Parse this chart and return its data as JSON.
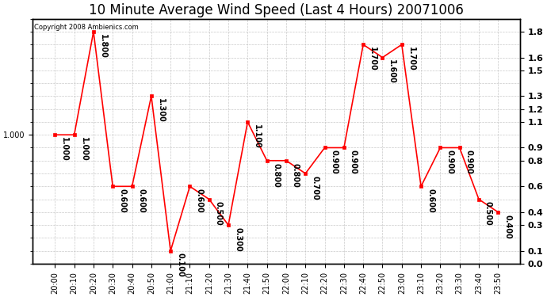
{
  "title": "10 Minute Average Wind Speed (Last 4 Hours) 20071006",
  "copyright": "Copyright 2008 Ambienics.com",
  "x_labels": [
    "20:00",
    "20:10",
    "20:20",
    "20:30",
    "20:40",
    "20:50",
    "21:00",
    "21:10",
    "21:20",
    "21:30",
    "21:40",
    "21:50",
    "22:00",
    "22:10",
    "22:20",
    "22:30",
    "22:40",
    "22:50",
    "23:00",
    "23:10",
    "23:20",
    "23:30",
    "23:40",
    "23:50"
  ],
  "y_values": [
    1.0,
    1.0,
    1.8,
    0.6,
    0.6,
    1.3,
    0.1,
    0.6,
    0.5,
    0.3,
    1.1,
    0.8,
    0.8,
    0.7,
    0.9,
    0.9,
    1.7,
    1.6,
    1.7,
    0.6,
    0.9,
    0.9,
    0.5,
    0.4
  ],
  "annot_values": [
    "1.000",
    "1.000",
    "1.800",
    "0.600",
    "0.600",
    "1.300",
    "0.100",
    "0.600",
    "0.500",
    "0.300",
    "1.100",
    "0.800",
    "0.800",
    "0.700",
    "0.900",
    "0.900",
    "1.700",
    "1.600",
    "1.700",
    "0.600",
    "0.900",
    "0.900",
    "0.500",
    "0.400"
  ],
  "line_color": "#ff0000",
  "marker_color": "#ff0000",
  "bg_color": "#ffffff",
  "grid_color": "#bbbbbb",
  "ylim": [
    0.0,
    1.9
  ],
  "yticks_left": [
    1.0
  ],
  "yticks_right": [
    0.0,
    0.1,
    0.3,
    0.4,
    0.6,
    0.8,
    0.9,
    1.1,
    1.2,
    1.3,
    1.5,
    1.6,
    1.8
  ],
  "grid_yticks": [
    0.0,
    0.1,
    0.2,
    0.3,
    0.4,
    0.5,
    0.6,
    0.7,
    0.8,
    0.9,
    1.0,
    1.1,
    1.2,
    1.3,
    1.4,
    1.5,
    1.6,
    1.7,
    1.8,
    1.9
  ],
  "title_fontsize": 12,
  "label_fontsize": 7,
  "annot_fontsize": 7,
  "copyright_fontsize": 6
}
